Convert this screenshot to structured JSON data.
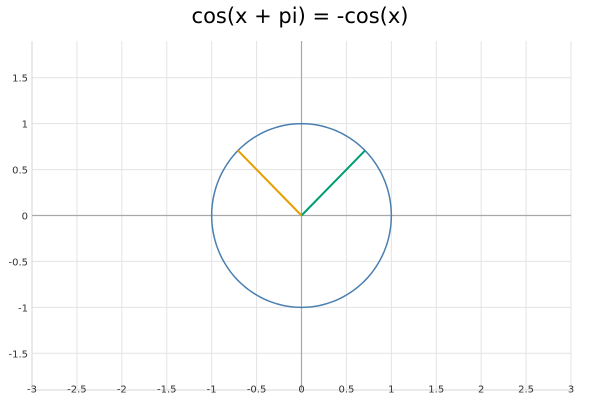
{
  "chart_data": {
    "type": "line",
    "title": "cos(x + pi) = -cos(x)",
    "xlim": [
      -3,
      3
    ],
    "ylim": [
      -1.9,
      1.9
    ],
    "x_ticks": [
      -3,
      -2.5,
      -2,
      -1.5,
      -1,
      -0.5,
      0,
      0.5,
      1,
      1.5,
      2,
      2.5,
      3
    ],
    "y_ticks": [
      -1.5,
      -1,
      -0.5,
      0,
      0.5,
      1,
      1.5
    ],
    "x_tick_labels": [
      "-3",
      "-2.5",
      "-2",
      "-1.5",
      "-1",
      "-0.5",
      "0",
      "0.5",
      "1",
      "1.5",
      "2",
      "2.5",
      "3"
    ],
    "y_tick_labels": [
      "-1.5",
      "-1",
      "-0.5",
      "0",
      "0.5",
      "1",
      "1.5"
    ],
    "grid": true,
    "series": [
      {
        "kind": "unit-circle",
        "color": "#4a7fb0",
        "center": [
          0,
          0
        ],
        "radius": 1
      },
      {
        "kind": "segment",
        "color": "#009e73",
        "points": [
          [
            0,
            0
          ],
          [
            0.707,
            0.707
          ]
        ]
      },
      {
        "kind": "segment",
        "color": "#e69f00",
        "points": [
          [
            0,
            0
          ],
          [
            -0.707,
            0.707
          ]
        ]
      }
    ]
  }
}
